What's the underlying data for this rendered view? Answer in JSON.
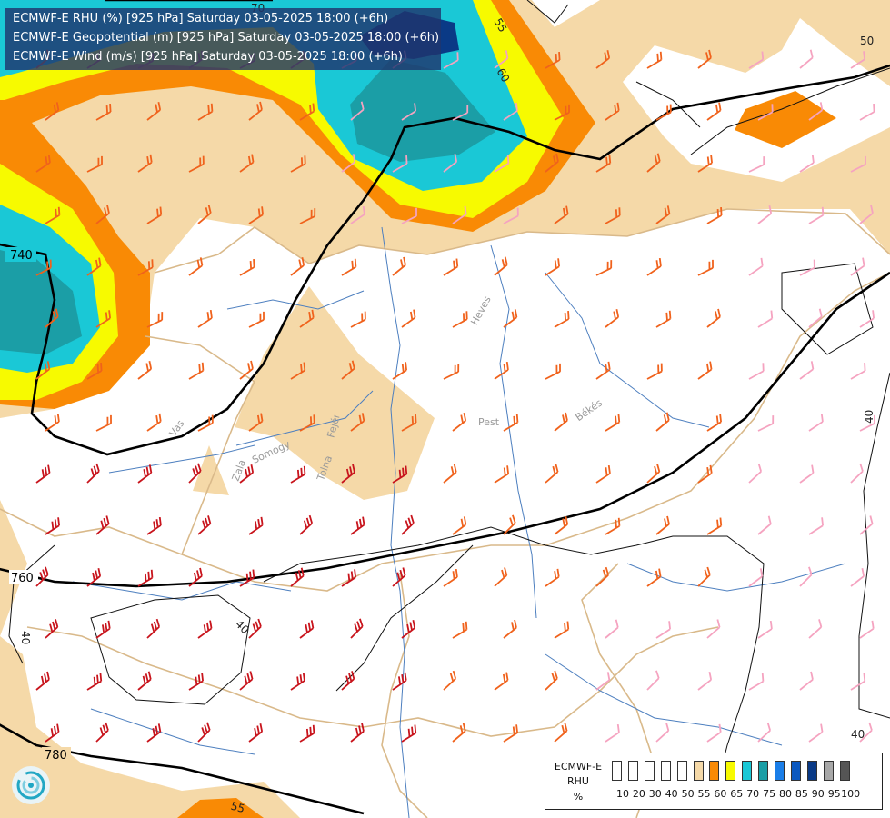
{
  "title": {
    "line1": "ECMWF-E RHU (%) [925 hPa] Saturday 03-05-2025 18:00 (+6h)",
    "line2": "ECMWF-E Geopotential (m) [925 hPa] Saturday 03-05-2025 18:00 (+6h)",
    "line3": "ECMWF-E Wind (m/s) [925 hPa] Saturday 03-05-2025 18:00 (+6h)"
  },
  "map": {
    "geopotential_labels": [
      "740",
      "760",
      "780"
    ],
    "rhu_labels": [
      "70",
      "55",
      "60",
      "50",
      "40",
      "40",
      "40",
      "40",
      "55"
    ],
    "place_labels": [
      "Heves",
      "Pest",
      "Békés",
      "Vas",
      "Somogy",
      "Tolna",
      "Fejér",
      "Zala"
    ]
  },
  "legend": {
    "label_lines": [
      "ECMWF-E",
      "RHU",
      "%"
    ],
    "ticks": [
      "10",
      "20",
      "30",
      "40",
      "50",
      "55",
      "60",
      "65",
      "70",
      "75",
      "80",
      "85",
      "90",
      "95",
      "100"
    ],
    "colors": [
      "#ffffff",
      "#ffffff",
      "#ffffff",
      "#ffffff",
      "#ffffff",
      "#f5d9a8",
      "#f98a05",
      "#f7fa00",
      "#1ac8d6",
      "#1b9ea6",
      "#1a7ee8",
      "#0b58c0",
      "#0a3a86",
      "#a8a8a8",
      "#555555"
    ]
  },
  "colors": {
    "rhu_50_55": "#f5d9a8",
    "rhu_55_60": "#f98a05",
    "rhu_60_65": "#f7fa00",
    "rhu_65_70": "#1ac8d6",
    "rhu_70_75": "#1b9ea6",
    "rhu_85_90": "#0a3a86",
    "wind_low": "#f5a3c0",
    "wind_mid": "#f0621c",
    "wind_high": "#c8141c",
    "river": "#4d7fbf",
    "border": "#d9b98a"
  }
}
